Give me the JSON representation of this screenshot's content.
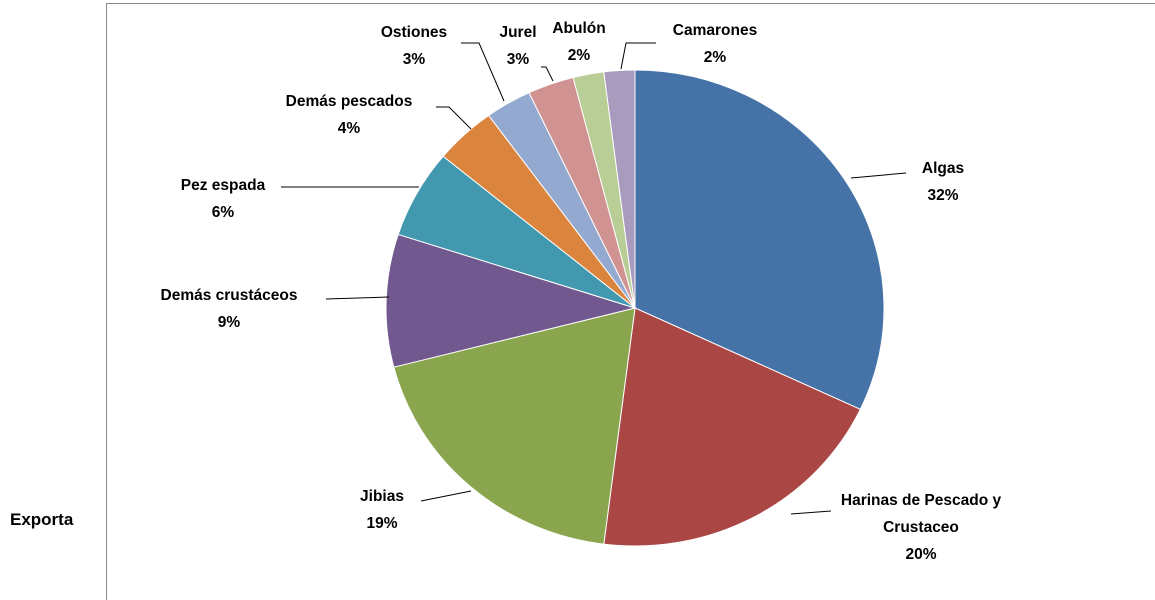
{
  "page_text": "Exporta",
  "chart_data": {
    "type": "pie",
    "categories": [
      "Algas",
      "Harinas de Pescado y Crustaceo",
      "Jibias",
      "Demás crustáceos",
      "Pez espada",
      "Demás pescados",
      "Ostiones",
      "Jurel",
      "Abulón",
      "Camarones"
    ],
    "values": [
      32,
      20,
      19,
      9,
      6,
      4,
      3,
      3,
      2,
      2
    ],
    "value_labels": [
      "32%",
      "20%",
      "19%",
      "9%",
      "6%",
      "4%",
      "3%",
      "3%",
      "2%",
      "2%"
    ],
    "colors": [
      "#4572a7",
      "#aa4643",
      "#89a54e",
      "#71588f",
      "#4198af",
      "#db843d",
      "#93a9cf",
      "#d19392",
      "#b9cd96",
      "#a99bbd"
    ]
  }
}
